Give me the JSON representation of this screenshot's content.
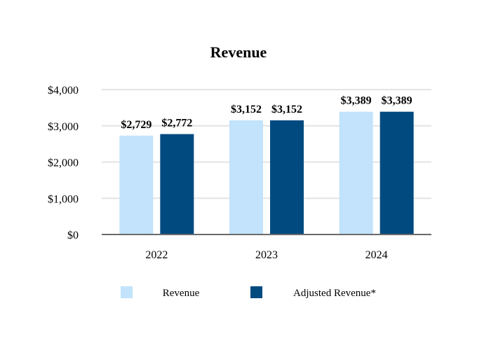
{
  "chart_data": {
    "type": "bar",
    "title": "Revenue",
    "xlabel": "",
    "ylabel": "",
    "categories": [
      "2022",
      "2023",
      "2024"
    ],
    "series": [
      {
        "name": "Revenue",
        "values": [
          2729,
          3152,
          3389
        ],
        "labels": [
          "$2,729",
          "$3,152",
          "$3,389"
        ],
        "color": "#c2e3fb"
      },
      {
        "name": "Adjusted Revenue*",
        "values": [
          2772,
          3152,
          3389
        ],
        "labels": [
          "$2,772",
          "$3,152",
          "$3,389"
        ],
        "color": "#004a80"
      }
    ],
    "ylim": [
      0,
      4000
    ],
    "yticks": [
      0,
      1000,
      2000,
      3000,
      4000
    ],
    "ytick_labels": [
      "$0",
      "$1,000",
      "$2,000",
      "$3,000",
      "$4,000"
    ],
    "grid": true,
    "legend_position": "bottom"
  },
  "colors": {
    "grid": "#e3e3e3",
    "axis": "#6b6b6b"
  }
}
